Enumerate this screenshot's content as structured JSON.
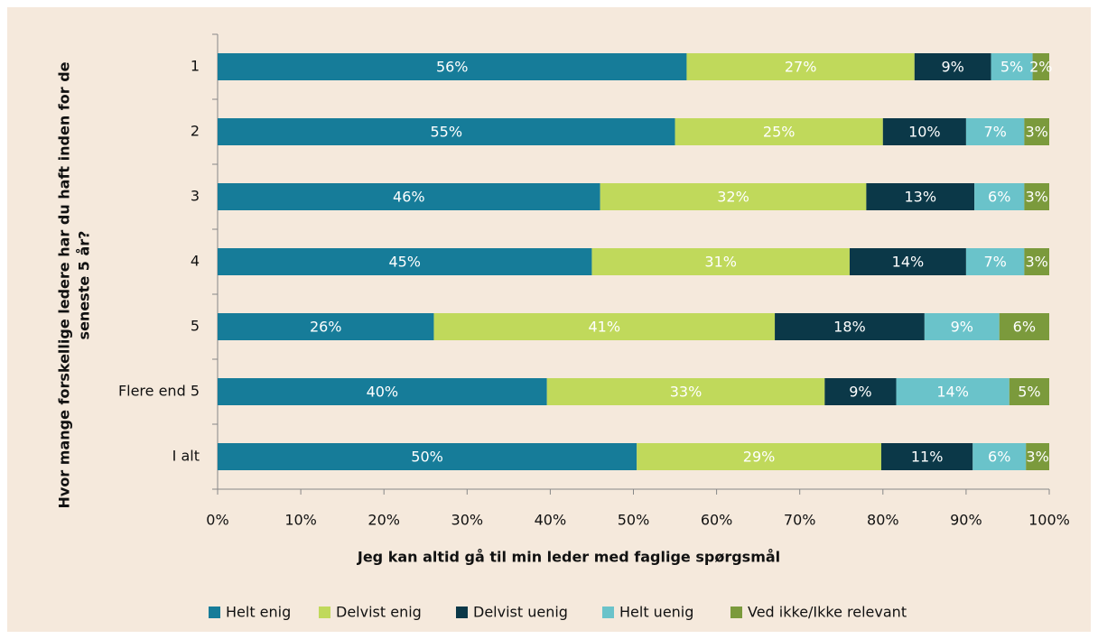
{
  "chart_data": {
    "type": "stacked-barh",
    "xlabel": "Jeg kan altid gå til min leder med faglige spørgsmål",
    "ylabel": [
      "Hvor mange forskellige ledere har du haft inden for de",
      "seneste 5 år?"
    ],
    "categories": [
      "1",
      "2",
      "3",
      "4",
      "5",
      "Flere end 5",
      "I alt"
    ],
    "xlim": [
      0,
      100
    ],
    "xticks": [
      {
        "value": 0,
        "label": "0%"
      },
      {
        "value": 10,
        "label": "10%"
      },
      {
        "value": 20,
        "label": "20%"
      },
      {
        "value": 30,
        "label": "30%"
      },
      {
        "value": 40,
        "label": "40%"
      },
      {
        "value": 50,
        "label": "50%"
      },
      {
        "value": 60,
        "label": "60%"
      },
      {
        "value": 70,
        "label": "70%"
      },
      {
        "value": 80,
        "label": "80%"
      },
      {
        "value": 90,
        "label": "90%"
      },
      {
        "value": 100,
        "label": "100%"
      }
    ],
    "legend": "bottom",
    "series": [
      {
        "name": "Helt enig",
        "color": "#167c99",
        "values": [
          56.4,
          55,
          46,
          45,
          26,
          39.6,
          50.4
        ],
        "value_labels": [
          "56%",
          "55%",
          "46%",
          "45%",
          "26%",
          "40%",
          "50%"
        ]
      },
      {
        "name": "Delvist enig",
        "color": "#c0d95b",
        "values": [
          27.4,
          25,
          32,
          31,
          41,
          33.4,
          29.4
        ],
        "value_labels": [
          "27%",
          "25%",
          "32%",
          "31%",
          "41%",
          "33%",
          "29%"
        ]
      },
      {
        "name": "Delvist uenig",
        "color": "#0b3848",
        "values": [
          9.2,
          10,
          13,
          14,
          18,
          8.6,
          11
        ],
        "value_labels": [
          "9%",
          "10%",
          "13%",
          "14%",
          "18%",
          "9%",
          "11%"
        ]
      },
      {
        "name": "Helt uenig",
        "color": "#6ac3ca",
        "values": [
          5,
          7,
          6,
          7,
          9,
          13.6,
          6.4
        ],
        "value_labels": [
          "5%",
          "7%",
          "6%",
          "7%",
          "9%",
          "14%",
          "6%"
        ]
      },
      {
        "name": "Ved ikke/Ikke relevant",
        "color": "#7b9a3c",
        "values": [
          2,
          3,
          3,
          3,
          6,
          4.8,
          2.8
        ],
        "value_labels": [
          "2%",
          "3%",
          "3%",
          "3%",
          "6%",
          "5%",
          "3%"
        ]
      }
    ]
  }
}
